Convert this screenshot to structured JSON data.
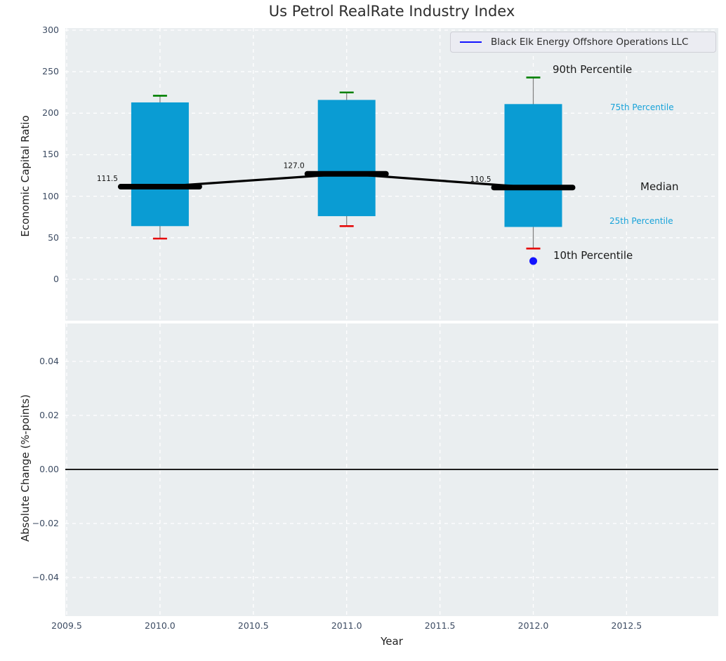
{
  "figure_title": "Us Petrol RealRate Industry Index",
  "colors": {
    "plot_background": "#eaeef0",
    "grid": "#ffffff",
    "box_fill": "#0a9cd3",
    "median_line": "#000000",
    "whisker": "#7f7f7f",
    "p90_cap": "#008000",
    "p10_cap": "#e60000",
    "company_blue": "#1313ff",
    "cyan_annotation": "#17a2d9",
    "tick_label": "#3d4c63",
    "zero_line": "#000000"
  },
  "chart_data": [
    {
      "type": "boxplot-timeseries",
      "title": "Us Petrol RealRate Industry Index",
      "xlabel": "Year",
      "ylabel": "Economic Capital Ratio",
      "xlim": [
        2009.5,
        2013.0
      ],
      "ylim": [
        -50,
        302
      ],
      "grid": true,
      "xticks": [
        2009.5,
        2010.0,
        2010.5,
        2011.0,
        2011.5,
        2012.0,
        2012.5
      ],
      "xtick_labels": [
        "2009.5",
        "2010.0",
        "2010.5",
        "2011.0",
        "2011.5",
        "2012.0",
        "2012.5"
      ],
      "yticks": [
        300,
        250,
        200,
        150,
        100,
        50,
        0
      ],
      "ytick_labels": [
        "300",
        "250",
        "200",
        "150",
        "100",
        "50",
        "0"
      ],
      "legend": {
        "label": "Black Elk Energy Offshore Operations LLC",
        "position": "upper right",
        "line_color": "#1313ff"
      },
      "boxes": [
        {
          "year": 2010,
          "p10": 49,
          "p25": 64,
          "median": 111.5,
          "p75": 213,
          "p90": 221,
          "median_label": "111.5"
        },
        {
          "year": 2011,
          "p10": 64,
          "p25": 76,
          "median": 127.0,
          "p75": 216,
          "p90": 225,
          "median_label": "127.0"
        },
        {
          "year": 2012,
          "p10": 37,
          "p25": 63,
          "median": 110.5,
          "p75": 211,
          "p90": 243,
          "median_label": "110.5"
        }
      ],
      "company_point": {
        "name": "Black Elk Energy Offshore Operations LLC",
        "x": 2012,
        "y": 22,
        "color": "#1313ff"
      },
      "annotations": {
        "p90": "90th Percentile",
        "p75": "75th Percentile",
        "median": "Median",
        "p25": "25th Percentile",
        "p10": "10th Percentile"
      }
    },
    {
      "type": "line",
      "xlabel": "Year",
      "ylabel": "Absolute Change (%-points)",
      "xlim": [
        2009.5,
        2013.0
      ],
      "ylim": [
        -0.054,
        0.054
      ],
      "grid": true,
      "xticks": [
        2009.5,
        2010.0,
        2010.5,
        2011.0,
        2011.5,
        2012.0,
        2012.5
      ],
      "xtick_labels": [
        "2009.5",
        "2010.0",
        "2010.5",
        "2011.0",
        "2011.5",
        "2012.0",
        "2012.5"
      ],
      "yticks": [
        0.04,
        0.02,
        0.0,
        -0.02,
        -0.04
      ],
      "ytick_labels": [
        "0.04",
        "0.02",
        "0.00",
        "−0.02",
        "−0.04"
      ],
      "zero_line": 0.0,
      "series": []
    }
  ]
}
